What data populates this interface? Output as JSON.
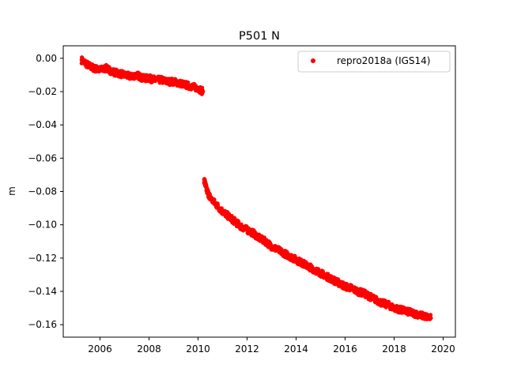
{
  "chart_data": {
    "type": "scatter",
    "title": "P501 N",
    "xlabel": "",
    "ylabel": "m",
    "xlim": [
      2004.5,
      2020.5
    ],
    "ylim": [
      -0.1675,
      0.0075
    ],
    "x_ticks": [
      2006,
      2008,
      2010,
      2012,
      2014,
      2016,
      2018,
      2020
    ],
    "x_tick_labels": [
      "2006",
      "2008",
      "2010",
      "2012",
      "2014",
      "2016",
      "2018",
      "2020"
    ],
    "y_ticks": [
      0.0,
      -0.02,
      -0.04,
      -0.06,
      -0.08,
      -0.1,
      -0.12,
      -0.14,
      -0.16
    ],
    "y_tick_labels": [
      "0.00",
      "−0.02",
      "−0.04",
      "−0.06",
      "−0.08",
      "−0.10",
      "−0.12",
      "−0.14",
      "−0.16"
    ],
    "grid": false,
    "legend_position": "top-right",
    "colors": {
      "series": "#ff0000",
      "axes": "#000000",
      "legend_border": "#cccccc"
    },
    "series": [
      {
        "name": "repro2018a (IGS14)",
        "marker": "circle",
        "segments": [
          {
            "x": [
              2005.25,
              2005.5,
              2005.75,
              2006.0,
              2006.25,
              2006.5,
              2006.75,
              2007.0,
              2007.25,
              2007.5,
              2007.75,
              2008.0,
              2008.25,
              2008.5,
              2008.75,
              2009.0,
              2009.25,
              2009.5,
              2009.75,
              2010.0,
              2010.2
            ],
            "y": [
              -0.001,
              -0.004,
              -0.006,
              -0.007,
              -0.006,
              -0.008,
              -0.009,
              -0.01,
              -0.011,
              -0.01,
              -0.012,
              -0.012,
              -0.013,
              -0.013,
              -0.014,
              -0.014,
              -0.015,
              -0.016,
              -0.017,
              -0.018,
              -0.02
            ]
          },
          {
            "x": [
              2010.25,
              2010.35,
              2010.5,
              2010.75,
              2011.0,
              2011.25,
              2011.5,
              2011.75,
              2012.0,
              2012.25,
              2012.5,
              2012.75,
              2013.0,
              2013.25,
              2013.5,
              2013.75,
              2014.0,
              2014.25,
              2014.5,
              2014.75,
              2015.0,
              2015.25,
              2015.5,
              2015.75,
              2016.0,
              2016.25,
              2016.5,
              2016.75,
              2017.0,
              2017.25,
              2017.5,
              2017.75,
              2018.0,
              2018.25,
              2018.5,
              2018.75,
              2019.0,
              2019.25,
              2019.5
            ],
            "y": [
              -0.073,
              -0.079,
              -0.084,
              -0.088,
              -0.092,
              -0.095,
              -0.098,
              -0.101,
              -0.103,
              -0.105,
              -0.108,
              -0.11,
              -0.113,
              -0.115,
              -0.117,
              -0.119,
              -0.121,
              -0.123,
              -0.125,
              -0.127,
              -0.129,
              -0.131,
              -0.133,
              -0.135,
              -0.137,
              -0.138,
              -0.14,
              -0.141,
              -0.143,
              -0.145,
              -0.147,
              -0.148,
              -0.15,
              -0.151,
              -0.152,
              -0.153,
              -0.154,
              -0.155,
              -0.156
            ]
          }
        ]
      }
    ]
  }
}
